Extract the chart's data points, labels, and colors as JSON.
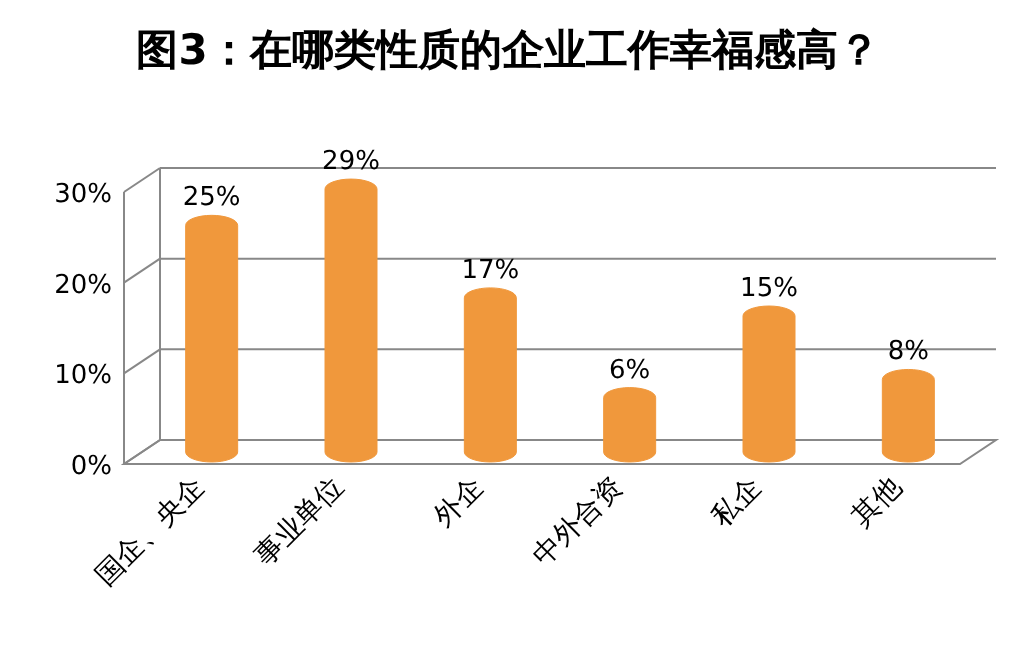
{
  "chart_data": {
    "type": "bar",
    "title": "图3：在哪类性质的企业工作幸福感高？",
    "categories": [
      "国企、央企",
      "事业单位",
      "外企",
      "中外合资",
      "私企",
      "其他"
    ],
    "values": [
      25,
      29,
      17,
      6,
      15,
      8
    ],
    "value_labels": [
      "25%",
      "29%",
      "17%",
      "6%",
      "15%",
      "8%"
    ],
    "color": "#f0983c",
    "ylim": [
      0,
      30
    ],
    "yticks": [
      {
        "value": 0,
        "label": "0%"
      },
      {
        "value": 10,
        "label": "10%"
      },
      {
        "value": 20,
        "label": "20%"
      },
      {
        "value": 30,
        "label": "30%"
      }
    ],
    "grid": "y"
  }
}
